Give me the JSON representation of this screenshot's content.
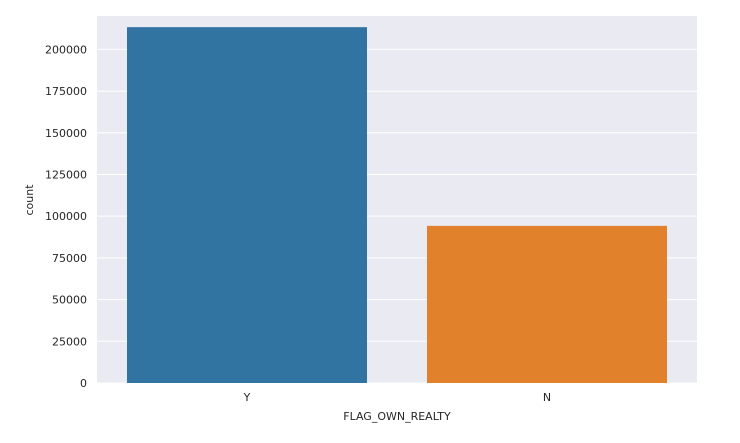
{
  "chart_data": {
    "type": "bar",
    "xlabel": "FLAG_OWN_REALTY",
    "ylabel": "count",
    "categories": [
      "Y",
      "N"
    ],
    "values": [
      213312,
      94199
    ],
    "ylim": [
      0,
      220000
    ],
    "yticks": [
      0,
      25000,
      50000,
      75000,
      100000,
      125000,
      150000,
      175000,
      200000
    ],
    "ytick_labels": [
      "0",
      "25000",
      "50000",
      "75000",
      "100000",
      "125000",
      "150000",
      "175000",
      "200000"
    ],
    "colors": [
      "#3274a1",
      "#e1812c"
    ],
    "background": "#eaeaf2",
    "grid": true
  }
}
